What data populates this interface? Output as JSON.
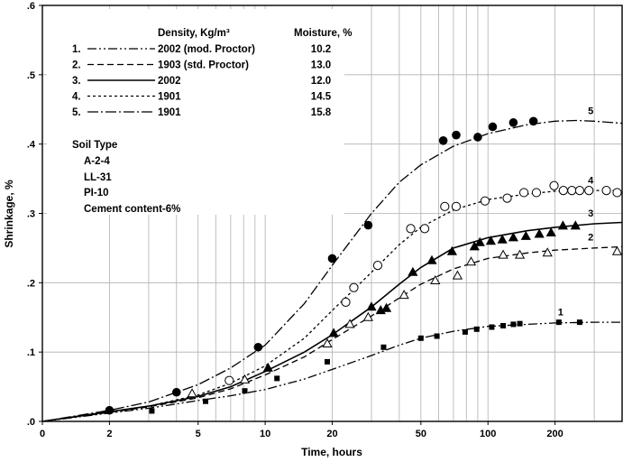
{
  "chart_data": {
    "type": "scatter",
    "xlabel": "Time, hours",
    "ylabel": "Shrinkage, %",
    "xscale": "log",
    "xlim": [
      1,
      400
    ],
    "ylim": [
      0,
      0.6
    ],
    "x_ticks": [
      {
        "value": 1,
        "label": "0"
      },
      {
        "value": 2,
        "label": "2"
      },
      {
        "value": 5,
        "label": "5"
      },
      {
        "value": 10,
        "label": "10"
      },
      {
        "value": 20,
        "label": "20"
      },
      {
        "value": 50,
        "label": "50"
      },
      {
        "value": 100,
        "label": "100"
      },
      {
        "value": 200,
        "label": "200"
      }
    ],
    "x_grid": [
      1,
      2,
      3,
      4,
      5,
      6,
      7,
      8,
      9,
      10,
      20,
      30,
      40,
      50,
      60,
      70,
      80,
      90,
      100,
      200,
      300,
      400
    ],
    "y_ticks": [
      {
        "value": 0.0,
        "label": ".0"
      },
      {
        "value": 0.1,
        "label": ".1"
      },
      {
        "value": 0.2,
        "label": ".2"
      },
      {
        "value": 0.3,
        "label": ".3"
      },
      {
        "value": 0.4,
        "label": ".4"
      },
      {
        "value": 0.5,
        "label": ".5"
      },
      {
        "value": 0.6,
        "label": ".6"
      }
    ],
    "grid": true,
    "legend": {
      "header_density": "Density, Kg/m³",
      "header_moisture": "Moisture, %",
      "entries": [
        {
          "number": "1.",
          "density": "2002 (mod. Proctor)",
          "moisture": "10.2",
          "dash": "10,3,2,3,2,3"
        },
        {
          "number": "2.",
          "density": "1903 (std. Proctor)",
          "moisture": "13.0",
          "dash": "7,4"
        },
        {
          "number": "3.",
          "density": "2002",
          "moisture": "12.0",
          "dash": ""
        },
        {
          "number": "4.",
          "density": "1901",
          "moisture": "14.5",
          "dash": "3,3"
        },
        {
          "number": "5.",
          "density": "1901",
          "moisture": "15.8",
          "dash": "12,3,2,3"
        }
      ]
    },
    "soil_info": {
      "title": "Soil Type",
      "lines": [
        "A-2-4",
        "LL-31",
        "PI-10",
        "Cement content-6%"
      ]
    },
    "series": [
      {
        "label": "5",
        "marker": "filled-circle",
        "curve_dash": "12,3,2,3",
        "curve": [
          [
            1,
            0
          ],
          [
            2,
            0.016
          ],
          [
            3,
            0.028
          ],
          [
            4,
            0.042
          ],
          [
            5,
            0.053
          ],
          [
            7,
            0.077
          ],
          [
            10,
            0.11
          ],
          [
            15,
            0.17
          ],
          [
            20,
            0.225
          ],
          [
            30,
            0.3
          ],
          [
            40,
            0.345
          ],
          [
            50,
            0.37
          ],
          [
            70,
            0.397
          ],
          [
            100,
            0.415
          ],
          [
            150,
            0.428
          ],
          [
            200,
            0.433
          ],
          [
            250,
            0.434
          ],
          [
            300,
            0.433
          ],
          [
            400,
            0.43
          ]
        ],
        "points": [
          [
            2,
            0.016
          ],
          [
            4,
            0.042
          ],
          [
            9.3,
            0.107
          ],
          [
            20,
            0.235
          ],
          [
            29,
            0.283
          ],
          [
            63,
            0.405
          ],
          [
            72,
            0.413
          ],
          [
            90,
            0.41
          ],
          [
            105,
            0.425
          ],
          [
            130,
            0.431
          ],
          [
            160,
            0.433
          ]
        ]
      },
      {
        "label": "4",
        "marker": "open-circle",
        "curve_dash": "3,3",
        "curve": [
          [
            1,
            0
          ],
          [
            2,
            0.014
          ],
          [
            3,
            0.022
          ],
          [
            5,
            0.038
          ],
          [
            7,
            0.055
          ],
          [
            10,
            0.08
          ],
          [
            15,
            0.12
          ],
          [
            20,
            0.16
          ],
          [
            25,
            0.19
          ],
          [
            30,
            0.215
          ],
          [
            40,
            0.255
          ],
          [
            50,
            0.28
          ],
          [
            70,
            0.305
          ],
          [
            100,
            0.32
          ],
          [
            150,
            0.328
          ],
          [
            200,
            0.332
          ],
          [
            300,
            0.333
          ],
          [
            400,
            0.333
          ]
        ],
        "points": [
          [
            6.9,
            0.059
          ],
          [
            23,
            0.172
          ],
          [
            25,
            0.193
          ],
          [
            32,
            0.225
          ],
          [
            45,
            0.278
          ],
          [
            52,
            0.278
          ],
          [
            64,
            0.31
          ],
          [
            72,
            0.31
          ],
          [
            97,
            0.318
          ],
          [
            122,
            0.322
          ],
          [
            145,
            0.33
          ],
          [
            165,
            0.33
          ],
          [
            198,
            0.34
          ],
          [
            218,
            0.333
          ],
          [
            238,
            0.333
          ],
          [
            258,
            0.333
          ],
          [
            284,
            0.333
          ],
          [
            340,
            0.333
          ],
          [
            380,
            0.33
          ]
        ]
      },
      {
        "label": "3",
        "marker": "filled-triangle",
        "curve_dash": "",
        "curve": [
          [
            1,
            0
          ],
          [
            2,
            0.014
          ],
          [
            3,
            0.022
          ],
          [
            5,
            0.036
          ],
          [
            7,
            0.05
          ],
          [
            10,
            0.072
          ],
          [
            15,
            0.1
          ],
          [
            20,
            0.125
          ],
          [
            30,
            0.165
          ],
          [
            40,
            0.198
          ],
          [
            50,
            0.222
          ],
          [
            70,
            0.25
          ],
          [
            100,
            0.265
          ],
          [
            150,
            0.275
          ],
          [
            200,
            0.28
          ],
          [
            300,
            0.285
          ],
          [
            400,
            0.287
          ]
        ],
        "points": [
          [
            10.3,
            0.077
          ],
          [
            20.3,
            0.127
          ],
          [
            30,
            0.165
          ],
          [
            33,
            0.16
          ],
          [
            35,
            0.163
          ],
          [
            46,
            0.215
          ],
          [
            56,
            0.232
          ],
          [
            69,
            0.245
          ],
          [
            87,
            0.252
          ],
          [
            92,
            0.258
          ],
          [
            103,
            0.26
          ],
          [
            116,
            0.262
          ],
          [
            130,
            0.265
          ],
          [
            148,
            0.267
          ],
          [
            170,
            0.27
          ],
          [
            192,
            0.272
          ],
          [
            217,
            0.282
          ],
          [
            247,
            0.282
          ]
        ]
      },
      {
        "label": "2",
        "marker": "open-triangle",
        "curve_dash": "7,4",
        "curve": [
          [
            1,
            0
          ],
          [
            2,
            0.013
          ],
          [
            3,
            0.021
          ],
          [
            5,
            0.034
          ],
          [
            7,
            0.047
          ],
          [
            10,
            0.067
          ],
          [
            15,
            0.093
          ],
          [
            20,
            0.118
          ],
          [
            30,
            0.152
          ],
          [
            40,
            0.178
          ],
          [
            50,
            0.198
          ],
          [
            70,
            0.22
          ],
          [
            100,
            0.235
          ],
          [
            150,
            0.243
          ],
          [
            200,
            0.247
          ],
          [
            300,
            0.25
          ],
          [
            400,
            0.252
          ]
        ],
        "points": [
          [
            4.7,
            0.04
          ],
          [
            8.1,
            0.06
          ],
          [
            19,
            0.112
          ],
          [
            24,
            0.14
          ],
          [
            29,
            0.15
          ],
          [
            42,
            0.182
          ],
          [
            58,
            0.203
          ],
          [
            73,
            0.21
          ],
          [
            84,
            0.23
          ],
          [
            117,
            0.24
          ],
          [
            139,
            0.24
          ],
          [
            185,
            0.243
          ],
          [
            380,
            0.245
          ]
        ]
      },
      {
        "label": "1",
        "marker": "filled-square",
        "curve_dash": "10,3,2,3,2,3",
        "curve": [
          [
            1,
            0
          ],
          [
            2,
            0.012
          ],
          [
            3,
            0.019
          ],
          [
            5,
            0.03
          ],
          [
            7,
            0.037
          ],
          [
            10,
            0.046
          ],
          [
            15,
            0.061
          ],
          [
            20,
            0.075
          ],
          [
            30,
            0.095
          ],
          [
            40,
            0.11
          ],
          [
            50,
            0.12
          ],
          [
            70,
            0.13
          ],
          [
            100,
            0.137
          ],
          [
            150,
            0.14
          ],
          [
            200,
            0.142
          ],
          [
            300,
            0.143
          ],
          [
            400,
            0.143
          ]
        ],
        "points": [
          [
            3.1,
            0.015
          ],
          [
            5.4,
            0.029
          ],
          [
            8.1,
            0.044
          ],
          [
            11.3,
            0.062
          ],
          [
            19,
            0.086
          ],
          [
            34,
            0.107
          ],
          [
            50,
            0.12
          ],
          [
            59,
            0.123
          ],
          [
            79,
            0.129
          ],
          [
            89,
            0.133
          ],
          [
            104,
            0.136
          ],
          [
            117,
            0.138
          ],
          [
            130,
            0.14
          ],
          [
            139,
            0.141
          ],
          [
            208,
            0.143
          ],
          [
            258,
            0.143
          ]
        ]
      }
    ]
  }
}
